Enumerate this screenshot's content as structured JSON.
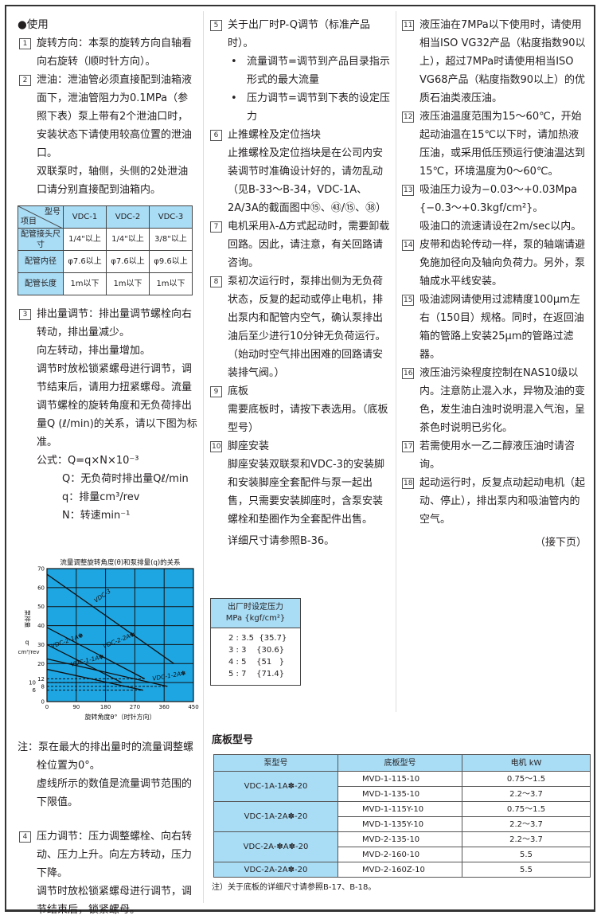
{
  "section_title": "●使用",
  "col1": {
    "item1": {
      "num": "1",
      "text": "旋转方向：本泵的旋转方向自轴看向右旋转（顺时针方向）。"
    },
    "item2": {
      "num": "2",
      "text": "泄油：泄油管必须直接配到油箱液面下，泄油管阻力为0.1MPa（参照下表）泵上带有2个泄油口时，安装状态下请使用较高位置的泄油口。",
      "text2": "双联泵时，轴侧，头侧的2处泄油口请分别直接配到油箱内。"
    },
    "drain_table": {
      "corner_top": "型号",
      "corner_bottom": "项目",
      "columns": [
        "VDC-1",
        "VDC-2",
        "VDC-3"
      ],
      "rows": [
        {
          "label": "配管接头尺寸",
          "values": [
            "1/4\"以上",
            "1/4\"以上",
            "3/8\"以上"
          ]
        },
        {
          "label": "配管内径",
          "values": [
            "φ7.6以上",
            "φ7.6以上",
            "φ9.6以上"
          ]
        },
        {
          "label": "配管长度",
          "values": [
            "1m以下",
            "1m以下",
            "1m以下"
          ]
        }
      ]
    },
    "item3": {
      "num": "3",
      "text": "排出量调节：排出量调节螺栓向右转动，排出量减少。",
      "text2": "向左转动，排出量增加。",
      "text3": "调节时放松锁紧螺母进行调节，调节结束后，请用力扭紧螺母。流量调节螺栓的旋转角度和无负荷排出量Q (ℓ/min)的关系，请以下图为标准。",
      "formula": "公式：Q=q×N×10⁻³",
      "def_q_big": "Q：无负荷时排出量Qℓ/min",
      "def_q": "q：排量cm³/rev",
      "def_n": "N：转速min⁻¹"
    },
    "note": {
      "text": "注：泵在最大的排出量时的流量调整螺栓位置为0°。",
      "text2": "虚线所示的数值是流量调节范围的下限值。"
    },
    "item4": {
      "num": "4",
      "text": "压力调节：压力调整螺栓、向右转动、压力上升。向左方转动，压力下降。",
      "text2": "调节时放松锁紧螺母进行调节，调节结束后，锁紧螺母。"
    }
  },
  "col2": {
    "item5": {
      "num": "5",
      "text": "关于出厂时P-Q调节（标准产品时）。",
      "bullet1": "流量调节=调节到产品目录指示形式的最大流量",
      "bullet2": "压力调节=调节到下表的设定压力"
    },
    "item6": {
      "num": "6",
      "text": "止推螺栓及定位挡块",
      "text2": "止推螺栓及定位挡块是在公司内安装调节时准确设计好的，请勿乱动（见B-33～B-34，VDC-1A、2A/3A的截面图中⑮、㊸/⑮、㊳）"
    },
    "item7": {
      "num": "7",
      "text": "电机采用λ-Δ方式起动时，需要卸载回路。因此，请注意，有关回路请咨询。"
    },
    "item8": {
      "num": "8",
      "text": "泵初次运行时，泵排出侧为无负荷状态，反复的起动或停止电机，排出泵内和配管内空气，确认泵排出油后至少进行10分钟无负荷运行。（始动时空气排出困难的回路请安装排气阀。）"
    },
    "item9": {
      "num": "9",
      "text": "底板",
      "text2": "需要底板时，请按下表选用。（底板型号）"
    },
    "item10": {
      "num": "10",
      "text": "脚座安装",
      "text2": "脚座安装双联泵和VDC-3的安装脚和安装脚座全套配件与泵一起出售，只需要安装脚座时，含泵安装螺栓和垫圈作为全套配件出售。",
      "text3": "详细尺寸请参照B-36。"
    },
    "pressure_table": {
      "header1": "出厂时设定压力",
      "header2": "MPa {kgf/cm²}",
      "rows": [
        "2 : 3.5  {35.7}",
        "3 : 3    {30.6}",
        "4 : 5    {51   }",
        "5 : 7    {71.4}"
      ]
    },
    "base_title": "底板型号",
    "base_table": {
      "columns": [
        "泵型号",
        "底板型号",
        "电机  kW"
      ],
      "groups": [
        {
          "pump": "VDC-1A-1A✽-20",
          "rows": [
            [
              "MVD-1-115-10",
              "0.75～1.5"
            ],
            [
              "MVD-1-135-10",
              "2.2～3.7"
            ]
          ]
        },
        {
          "pump": "VDC-1A-2A✽-20",
          "rows": [
            [
              "MVD-1-115Y-10",
              "0.75～1.5"
            ],
            [
              "MVD-1-135Y-10",
              "2.2～3.7"
            ]
          ]
        },
        {
          "pump": "VDC-2A-✽A✽-20",
          "rows": [
            [
              "MVD-2-135-10",
              "2.2～3.7"
            ],
            [
              "MVD-2-160-10",
              "5.5"
            ]
          ]
        },
        {
          "pump": "VDC-2A-2A✽-20",
          "rows": [
            [
              "MVD-2-160Z-10",
              "5.5"
            ]
          ]
        }
      ]
    },
    "base_note": "注）关于底板的详细尺寸请参照B-17、B-18。"
  },
  "col3": {
    "item11": {
      "num": "11",
      "text": "液压油在7MPa以下使用时，请使用相当ISO VG32产品（粘度指数90以上），超过7MPa时请使用相当ISO VG68产品（粘度指数90以上）的优质石油类液压油。"
    },
    "item12": {
      "num": "12",
      "text": "液压油温度范围为15～60℃，开始起动油温在15℃以下时，请加热液压油，或采用低压预运行使油温达到15℃，环境温度为0～60℃。"
    },
    "item13": {
      "num": "13",
      "text": "吸油压力设为−0.03～+0.03Mpa {−0.3～+0.3kgf/cm²}。",
      "text2": "吸油口的流速请设在2m/sec以内。"
    },
    "item14": {
      "num": "14",
      "text": "皮带和齿轮传动一样，泵的轴端请避免施加径向及轴向负荷力。另外，泵轴成水平线安装。"
    },
    "item15": {
      "num": "15",
      "text": "吸油滤网请使用过滤精度100μm左右（150目）规格。同时，在返回油箱的管路上安装25μm的管路过滤器。"
    },
    "item16": {
      "num": "16",
      "text": "液压油污染程度控制在NAS10级以内。注意防止混入水，异物及油的变色，发生油白浊时说明混入气泡，呈茶色时说明已劣化。"
    },
    "item17": {
      "num": "17",
      "text": "若需使用水一乙二醇液压油时请咨询。"
    },
    "item18": {
      "num": "18",
      "text": "起动运行时，反复点动起动电机（起动、停止），排出泵内和吸油管内的空气。"
    },
    "continued": "（接下页）"
  },
  "chart_data": {
    "type": "line",
    "title": "流量调整旋转角度(θ)和泵排量(q)的关系",
    "xlabel": "旋转角度θ°（时针方向）",
    "ylabel": [
      "泵排量",
      "q",
      "cm³/rev"
    ],
    "xlim": [
      0,
      450
    ],
    "ylim": [
      0,
      70
    ],
    "x_ticks": [
      0,
      90,
      180,
      270,
      360,
      450
    ],
    "y_ticks": [
      70,
      60,
      50,
      40,
      30,
      20,
      12,
      10,
      8,
      6,
      0
    ],
    "grid": true,
    "background_color": "#1ea6e3",
    "series": [
      {
        "name": "VDC-3",
        "points": [
          [
            0,
            67
          ],
          [
            390,
            20
          ]
        ]
      },
      {
        "name": "VDC-2-2A✽",
        "points": [
          [
            0,
            39
          ],
          [
            300,
            12
          ]
        ]
      },
      {
        "name": "VDC-2-1A✽",
        "points": [
          [
            0,
            30
          ],
          [
            230,
            10
          ]
        ]
      },
      {
        "name": "VDC-1-2A✽",
        "points": [
          [
            0,
            22.5
          ],
          [
            370,
            8
          ]
        ]
      },
      {
        "name": "VDC-1-1A✽",
        "points": [
          [
            0,
            17
          ],
          [
            295,
            6
          ]
        ]
      }
    ],
    "lower_limits_dashed": [
      12,
      10,
      8,
      6
    ]
  }
}
